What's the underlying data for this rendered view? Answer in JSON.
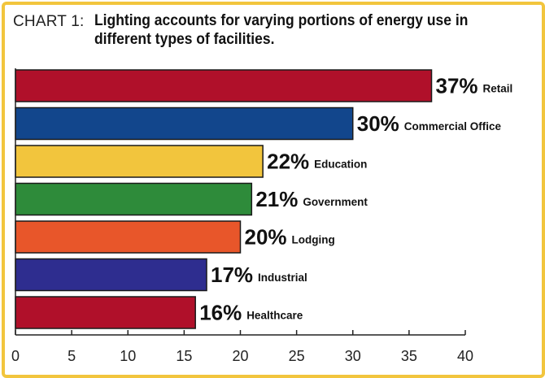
{
  "title": {
    "prefix": "CHART 1:",
    "text": "Lighting accounts for varying portions of energy use in different types of facilities."
  },
  "colors": {
    "frame": "#f2c53d",
    "axis": "#222222"
  },
  "chart_data": {
    "type": "bar",
    "orientation": "horizontal",
    "categories": [
      "Retail",
      "Commercial Office",
      "Education",
      "Government",
      "Lodging",
      "Industrial",
      "Healthcare"
    ],
    "values": [
      37,
      30,
      22,
      21,
      20,
      17,
      16
    ],
    "value_labels": [
      "37%",
      "30%",
      "22%",
      "21%",
      "20%",
      "17%",
      "16%"
    ],
    "bar_colors": [
      "#b0102a",
      "#12468c",
      "#f2c53d",
      "#2e8b3a",
      "#e8562a",
      "#2e2d8f",
      "#b0102a"
    ],
    "xlim": [
      0,
      40
    ],
    "xticks": [
      0,
      5,
      10,
      15,
      20,
      25,
      30,
      35,
      40
    ],
    "grid": false,
    "xlabel": "",
    "ylabel": ""
  }
}
